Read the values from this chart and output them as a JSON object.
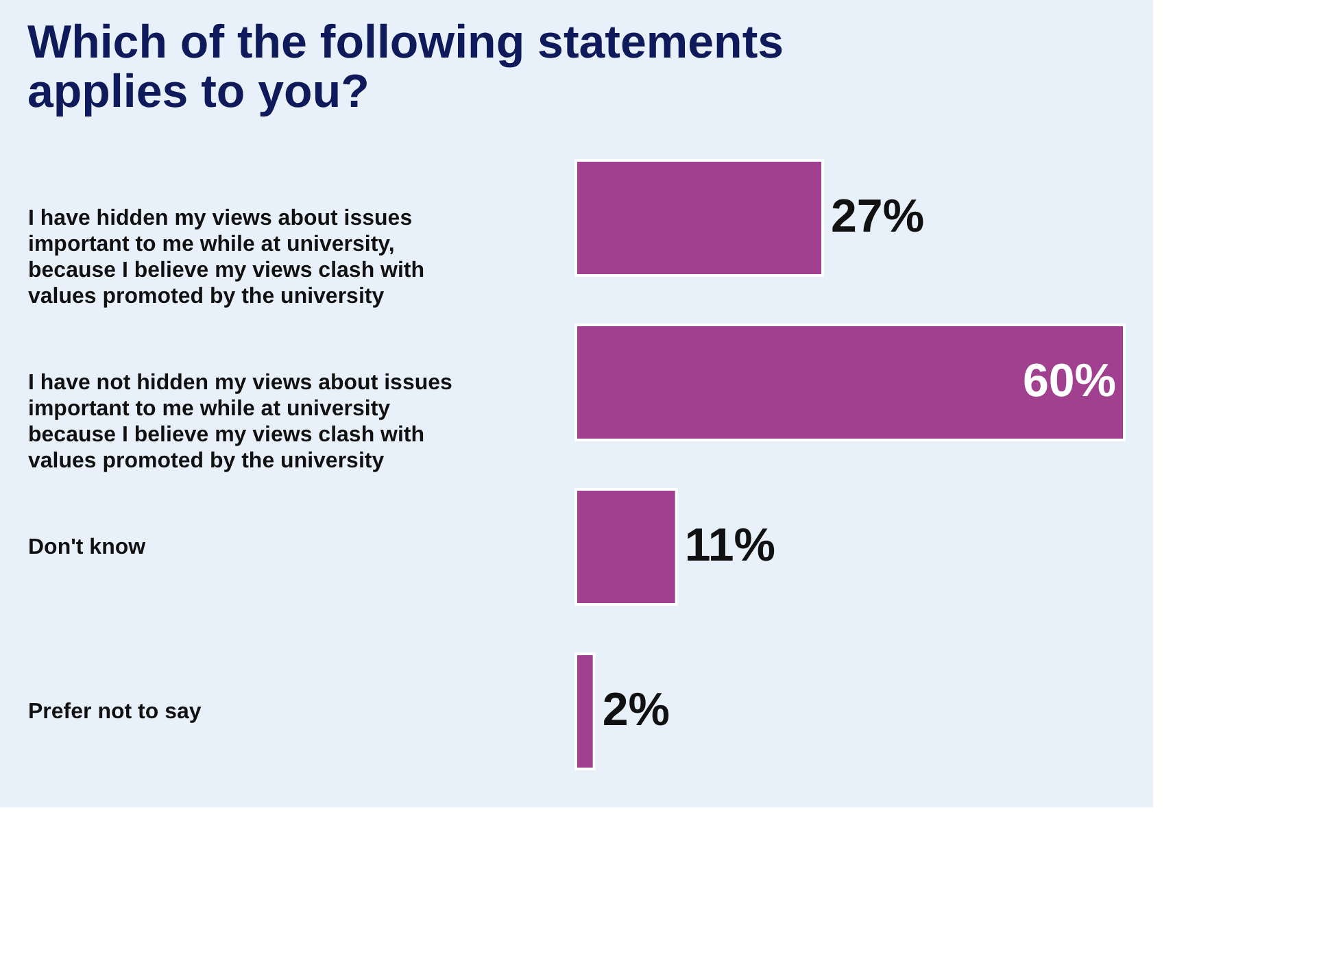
{
  "chart_data": {
    "type": "bar",
    "orientation": "horizontal",
    "title": "Which of the following statements applies to you?",
    "categories": [
      "I have hidden my views about issues important to me while at university, because I believe my views clash with values promoted by the university",
      "I have not hidden my views about issues important to me while at university because I believe my views clash with values promoted by the university",
      "Don't know",
      "Prefer not to say"
    ],
    "values": [
      27,
      60,
      11,
      2
    ],
    "value_labels": [
      "27%",
      "60%",
      "11%",
      "2%"
    ],
    "color": "#a0408f"
  }
}
